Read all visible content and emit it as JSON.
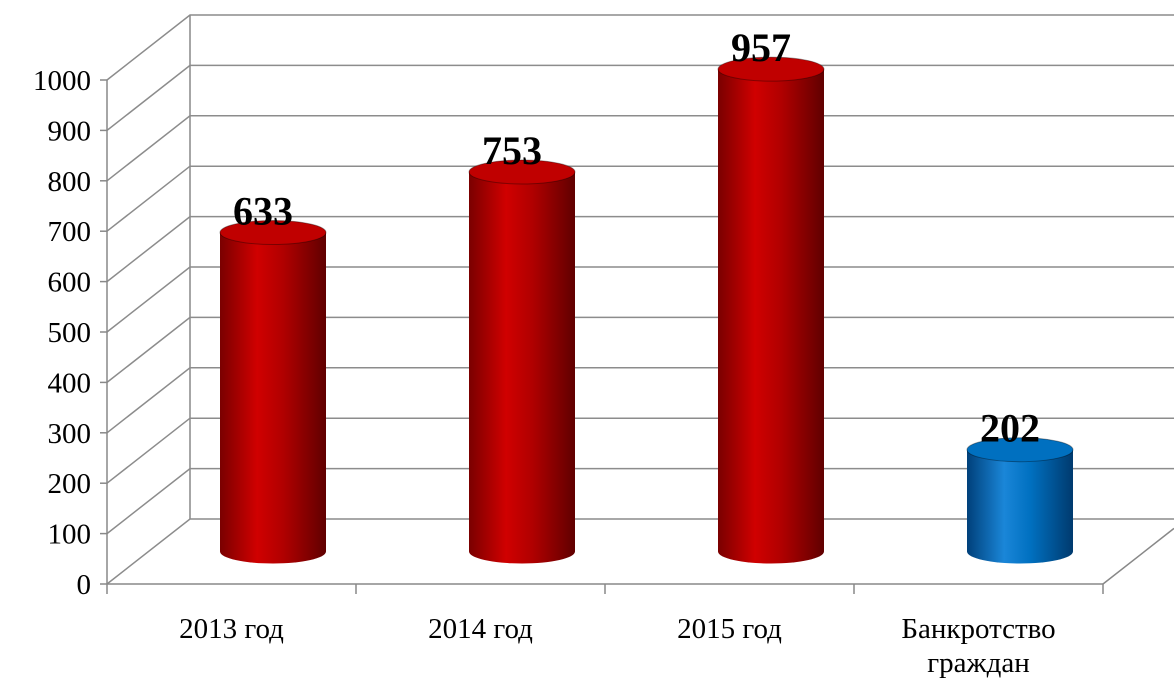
{
  "chart_data": {
    "type": "bar3d",
    "categories": [
      "2013 год",
      "2014 год",
      "2015 год",
      "Банкротство граждан"
    ],
    "values": [
      633,
      753,
      957,
      202
    ],
    "colors": [
      "#c00000",
      "#c00000",
      "#c00000",
      "#0070c0"
    ],
    "ylim": [
      0,
      1000
    ],
    "yticks": [
      0,
      100,
      200,
      300,
      400,
      500,
      600,
      700,
      800,
      900,
      1000
    ],
    "grid": true
  }
}
